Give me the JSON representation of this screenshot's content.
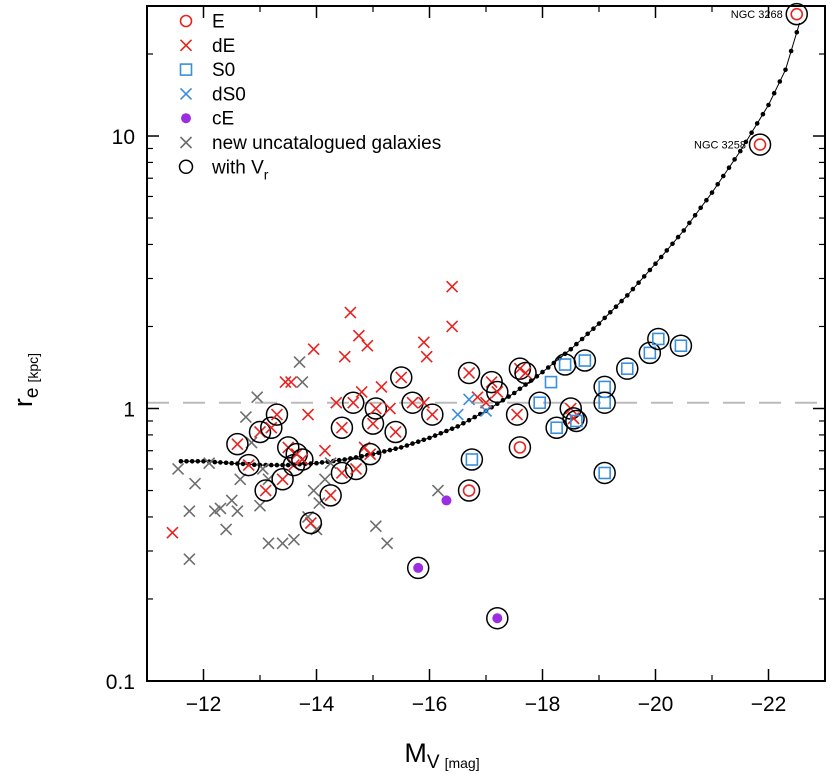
{
  "chart_data": {
    "type": "scatter",
    "title": "",
    "xlabel": "M",
    "xlabel_sub": "V",
    "xlabel_unit": "[mag]",
    "ylabel": "r",
    "ylabel_sub": "e",
    "ylabel_unit": "[kpc]",
    "xlim": [
      -11.0,
      -23.0
    ],
    "ylim": [
      0.1,
      30
    ],
    "yscale": "log",
    "grid": false,
    "legend_position": "top-left",
    "x_ticks": [
      -12,
      -14,
      -16,
      -18,
      -20,
      -22
    ],
    "x_tick_labels": [
      "−12",
      "−14",
      "−16",
      "−18",
      "−20",
      "−22"
    ],
    "y_ticks": [
      0.1,
      1,
      10
    ],
    "y_tick_labels": [
      "0.1",
      "1",
      "10"
    ],
    "reference_line": {
      "y": 1.05,
      "style": "dashed",
      "color": "#bbbbbb"
    },
    "legend": [
      {
        "label": "E",
        "marker": "circle",
        "color": "#e8231f"
      },
      {
        "label": "dE",
        "marker": "cross",
        "color": "#e8231f"
      },
      {
        "label": "S0",
        "marker": "square",
        "color": "#3a8fdc"
      },
      {
        "label": "dS0",
        "marker": "cross",
        "color": "#3a8fdc"
      },
      {
        "label": "cE",
        "marker": "filled-circle",
        "color": "#9b2ee0"
      },
      {
        "label": "new uncatalogued galaxies",
        "marker": "cross",
        "color": "#6e6e6e"
      },
      {
        "label": "with V",
        "label_sub": "r",
        "marker": "big-circle",
        "color": "#000000"
      }
    ],
    "annotations": [
      {
        "text": "NGC 3268",
        "x": -22.5,
        "y": 28
      },
      {
        "text": "NGC 3258",
        "x": -21.85,
        "y": 9.3
      }
    ],
    "series": [
      {
        "name": "E",
        "marker": "circle",
        "color": "#e8231f",
        "points": [
          [
            -22.5,
            28
          ],
          [
            -21.85,
            9.3
          ],
          [
            -16.7,
            0.5
          ],
          [
            -17.6,
            0.72
          ]
        ],
        "vr": [
          true,
          true,
          true,
          true
        ]
      },
      {
        "name": "dE",
        "marker": "cross",
        "color": "#e8231f",
        "points": [
          [
            -11.45,
            0.35
          ],
          [
            -12.6,
            0.74
          ],
          [
            -12.8,
            0.62
          ],
          [
            -13.0,
            0.82
          ],
          [
            -13.1,
            0.5
          ],
          [
            -13.2,
            0.85
          ],
          [
            -13.3,
            0.95
          ],
          [
            -13.4,
            0.55
          ],
          [
            -13.45,
            1.25
          ],
          [
            -13.5,
            0.72
          ],
          [
            -13.55,
            1.25
          ],
          [
            -13.6,
            0.62
          ],
          [
            -13.65,
            0.68
          ],
          [
            -13.75,
            0.65
          ],
          [
            -13.85,
            0.95
          ],
          [
            -13.9,
            0.38
          ],
          [
            -13.95,
            1.65
          ],
          [
            -14.15,
            0.7
          ],
          [
            -14.25,
            0.48
          ],
          [
            -14.35,
            1.05
          ],
          [
            -14.45,
            0.85
          ],
          [
            -14.45,
            0.58
          ],
          [
            -14.5,
            1.55
          ],
          [
            -14.6,
            2.25
          ],
          [
            -14.65,
            1.05
          ],
          [
            -14.7,
            0.6
          ],
          [
            -14.75,
            1.85
          ],
          [
            -14.8,
            1.15
          ],
          [
            -14.85,
            0.72
          ],
          [
            -14.9,
            1.7
          ],
          [
            -14.95,
            0.68
          ],
          [
            -15.0,
            0.88
          ],
          [
            -15.05,
            1.0
          ],
          [
            -15.15,
            1.2
          ],
          [
            -15.3,
            1.0
          ],
          [
            -15.4,
            0.82
          ],
          [
            -15.5,
            1.3
          ],
          [
            -15.7,
            1.05
          ],
          [
            -15.9,
            1.05
          ],
          [
            -15.9,
            1.75
          ],
          [
            -15.95,
            1.55
          ],
          [
            -16.05,
            0.95
          ],
          [
            -16.4,
            2.0
          ],
          [
            -16.4,
            2.8
          ],
          [
            -16.7,
            1.35
          ],
          [
            -16.85,
            1.1
          ],
          [
            -17.0,
            1.05
          ],
          [
            -17.1,
            1.25
          ],
          [
            -17.2,
            1.15
          ],
          [
            -17.55,
            0.95
          ],
          [
            -17.6,
            1.4
          ],
          [
            -17.7,
            1.35
          ],
          [
            -18.5,
            1.0
          ],
          [
            -18.55,
            0.92
          ]
        ],
        "vr": [
          false,
          true,
          true,
          true,
          true,
          true,
          true,
          true,
          false,
          true,
          false,
          true,
          true,
          true,
          false,
          true,
          false,
          false,
          true,
          false,
          true,
          true,
          false,
          false,
          true,
          true,
          false,
          false,
          false,
          false,
          true,
          true,
          true,
          false,
          false,
          true,
          true,
          true,
          false,
          false,
          false,
          true,
          false,
          false,
          true,
          false,
          false,
          true,
          true,
          true,
          true,
          true,
          true,
          true
        ]
      },
      {
        "name": "S0",
        "marker": "square",
        "color": "#3a8fdc",
        "points": [
          [
            -16.75,
            0.65
          ],
          [
            -17.95,
            1.05
          ],
          [
            -18.15,
            1.25
          ],
          [
            -18.25,
            0.85
          ],
          [
            -18.4,
            1.45
          ],
          [
            -18.75,
            1.5
          ],
          [
            -19.1,
            1.2
          ],
          [
            -19.1,
            1.05
          ],
          [
            -19.1,
            0.58
          ],
          [
            -19.5,
            1.4
          ],
          [
            -19.9,
            1.6
          ],
          [
            -20.05,
            1.8
          ],
          [
            -20.45,
            1.7
          ],
          [
            -18.6,
            0.9
          ]
        ],
        "vr": [
          true,
          true,
          false,
          true,
          true,
          true,
          true,
          true,
          true,
          true,
          true,
          true,
          true,
          true
        ]
      },
      {
        "name": "dS0",
        "marker": "cross",
        "color": "#3a8fdc",
        "points": [
          [
            -16.5,
            0.95
          ],
          [
            -16.7,
            1.08
          ],
          [
            -17.0,
            0.98
          ]
        ],
        "vr": [
          false,
          false,
          false
        ]
      },
      {
        "name": "cE",
        "marker": "filled-circle",
        "color": "#9b2ee0",
        "points": [
          [
            -15.8,
            0.26
          ],
          [
            -16.3,
            0.46
          ],
          [
            -17.2,
            0.17
          ]
        ],
        "vr": [
          true,
          false,
          true
        ]
      },
      {
        "name": "new uncatalogued galaxies",
        "marker": "cross",
        "color": "#6e6e6e",
        "points": [
          [
            -11.55,
            0.6
          ],
          [
            -11.75,
            0.42
          ],
          [
            -11.85,
            0.53
          ],
          [
            -11.75,
            0.28
          ],
          [
            -12.1,
            0.63
          ],
          [
            -12.2,
            0.42
          ],
          [
            -12.3,
            0.43
          ],
          [
            -12.4,
            0.36
          ],
          [
            -12.5,
            0.46
          ],
          [
            -12.6,
            0.42
          ],
          [
            -12.65,
            0.55
          ],
          [
            -12.75,
            0.93
          ],
          [
            -12.85,
            0.75
          ],
          [
            -12.95,
            1.1
          ],
          [
            -13.0,
            0.44
          ],
          [
            -13.05,
            0.6
          ],
          [
            -13.15,
            0.55
          ],
          [
            -13.15,
            0.32
          ],
          [
            -13.4,
            0.32
          ],
          [
            -13.6,
            0.33
          ],
          [
            -13.7,
            1.48
          ],
          [
            -13.75,
            1.25
          ],
          [
            -13.85,
            0.4
          ],
          [
            -13.95,
            0.5
          ],
          [
            -14.0,
            0.36
          ],
          [
            -14.05,
            0.45
          ],
          [
            -14.15,
            0.55
          ],
          [
            -14.25,
            0.63
          ],
          [
            -15.05,
            0.37
          ],
          [
            -15.25,
            0.32
          ],
          [
            -16.15,
            0.5
          ]
        ],
        "vr": [
          false,
          false,
          false,
          false,
          false,
          false,
          false,
          false,
          false,
          false,
          false,
          false,
          false,
          false,
          false,
          false,
          false,
          false,
          false,
          false,
          false,
          false,
          false,
          false,
          false,
          false,
          false,
          false,
          false,
          false,
          false
        ]
      }
    ],
    "model_curve": [
      [
        -11.6,
        0.64
      ],
      [
        -12.0,
        0.64
      ],
      [
        -12.5,
        0.63
      ],
      [
        -13.0,
        0.62
      ],
      [
        -13.5,
        0.62
      ],
      [
        -14.0,
        0.63
      ],
      [
        -14.5,
        0.65
      ],
      [
        -15.0,
        0.68
      ],
      [
        -15.5,
        0.72
      ],
      [
        -16.0,
        0.78
      ],
      [
        -16.5,
        0.86
      ],
      [
        -17.0,
        0.98
      ],
      [
        -17.5,
        1.14
      ],
      [
        -18.0,
        1.36
      ],
      [
        -18.5,
        1.65
      ],
      [
        -19.0,
        2.05
      ],
      [
        -19.5,
        2.6
      ],
      [
        -20.0,
        3.4
      ],
      [
        -20.5,
        4.5
      ],
      [
        -21.0,
        6.2
      ],
      [
        -21.5,
        8.8
      ],
      [
        -22.0,
        13.0
      ],
      [
        -22.3,
        17.5
      ],
      [
        -22.55,
        26.0
      ]
    ]
  }
}
